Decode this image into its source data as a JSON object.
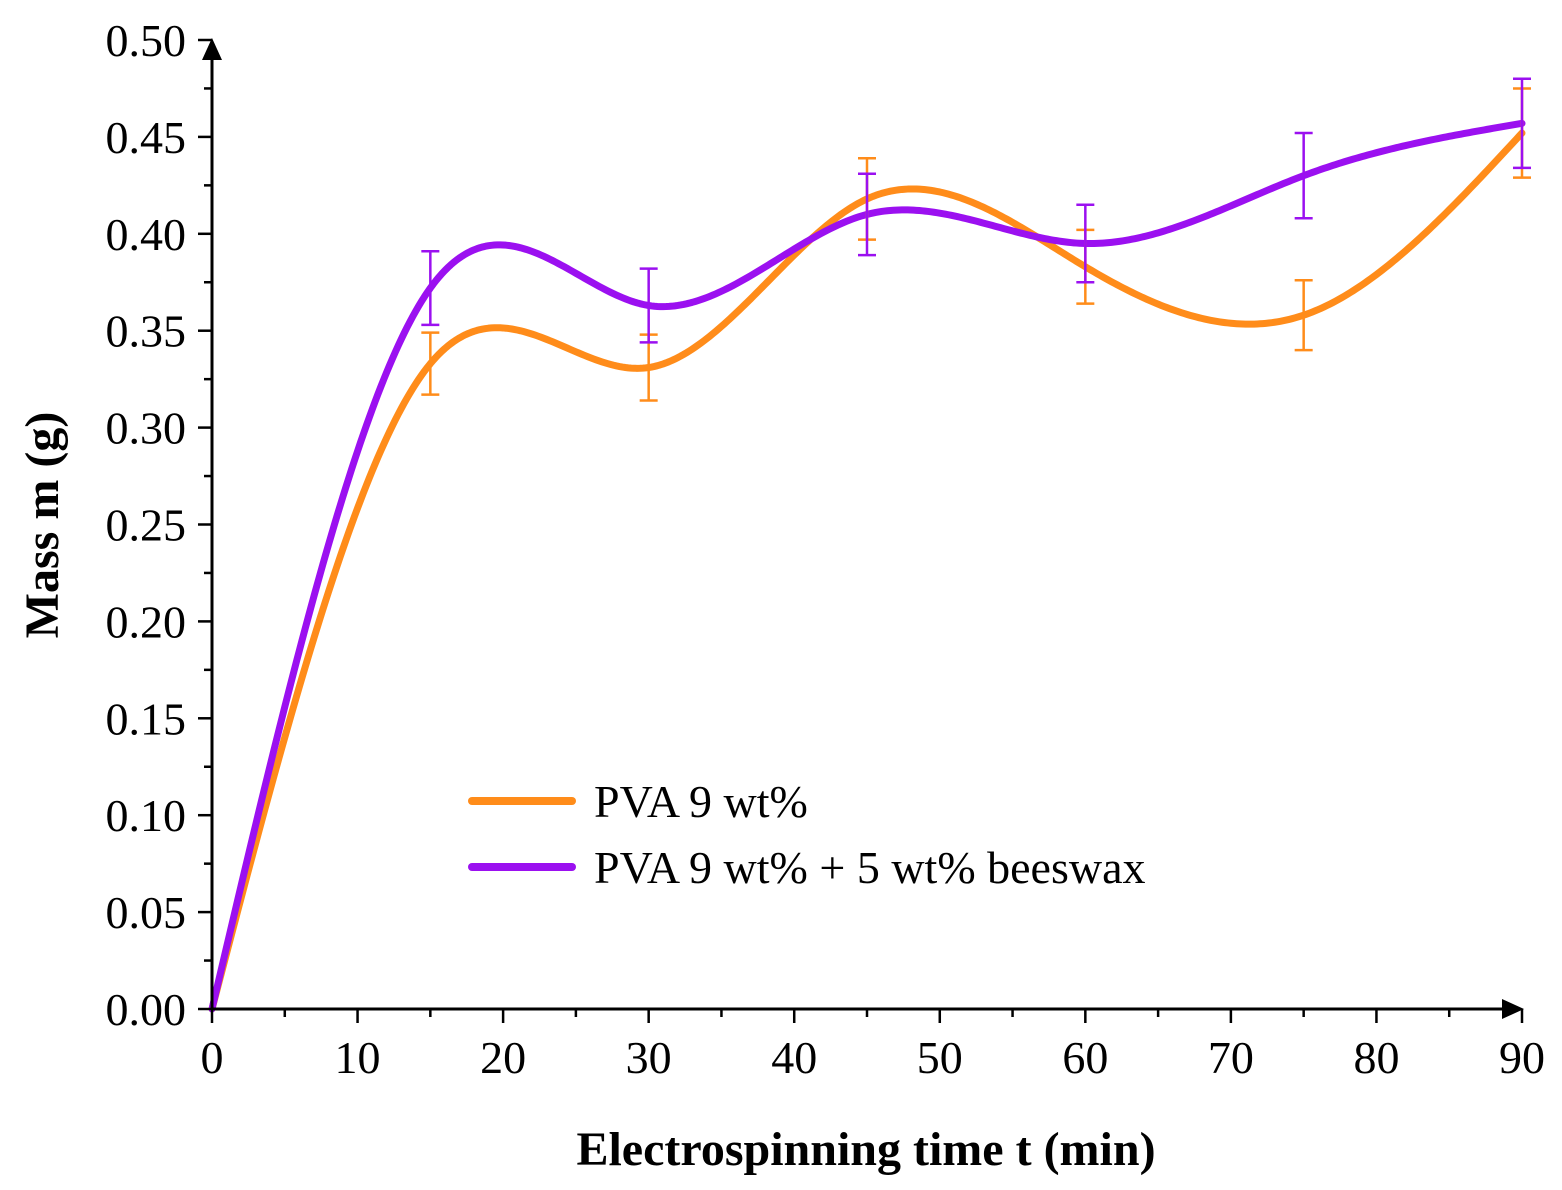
{
  "chart_data": {
    "type": "line",
    "title": "",
    "xlabel": "Electrospinning time t (min)",
    "ylabel": "Mass m (g)",
    "xlim": [
      0,
      90
    ],
    "ylim": [
      0,
      0.5
    ],
    "x_ticks": [
      "0",
      "10",
      "20",
      "30",
      "40",
      "50",
      "60",
      "70",
      "80",
      "90"
    ],
    "y_ticks": [
      "0.00",
      "0.05",
      "0.10",
      "0.15",
      "0.20",
      "0.25",
      "0.30",
      "0.35",
      "0.40",
      "0.45",
      "0.50"
    ],
    "grid": false,
    "legend_position": "bottom-center",
    "series": [
      {
        "name": "PVA 9 wt%",
        "color": "#ff8c1a",
        "x": [
          0,
          15,
          30,
          45,
          60,
          75,
          90
        ],
        "values": [
          0.0,
          0.333,
          0.331,
          0.418,
          0.383,
          0.358,
          0.452
        ],
        "error": [
          0,
          0.016,
          0.017,
          0.021,
          0.019,
          0.018,
          0.023
        ]
      },
      {
        "name": "PVA 9 wt% + 5 wt% beeswax",
        "color": "#9b10f0",
        "x": [
          0,
          15,
          30,
          45,
          60,
          75,
          90
        ],
        "values": [
          0.0,
          0.372,
          0.363,
          0.41,
          0.395,
          0.43,
          0.457
        ],
        "error": [
          0,
          0.019,
          0.019,
          0.021,
          0.02,
          0.022,
          0.023
        ]
      }
    ]
  }
}
